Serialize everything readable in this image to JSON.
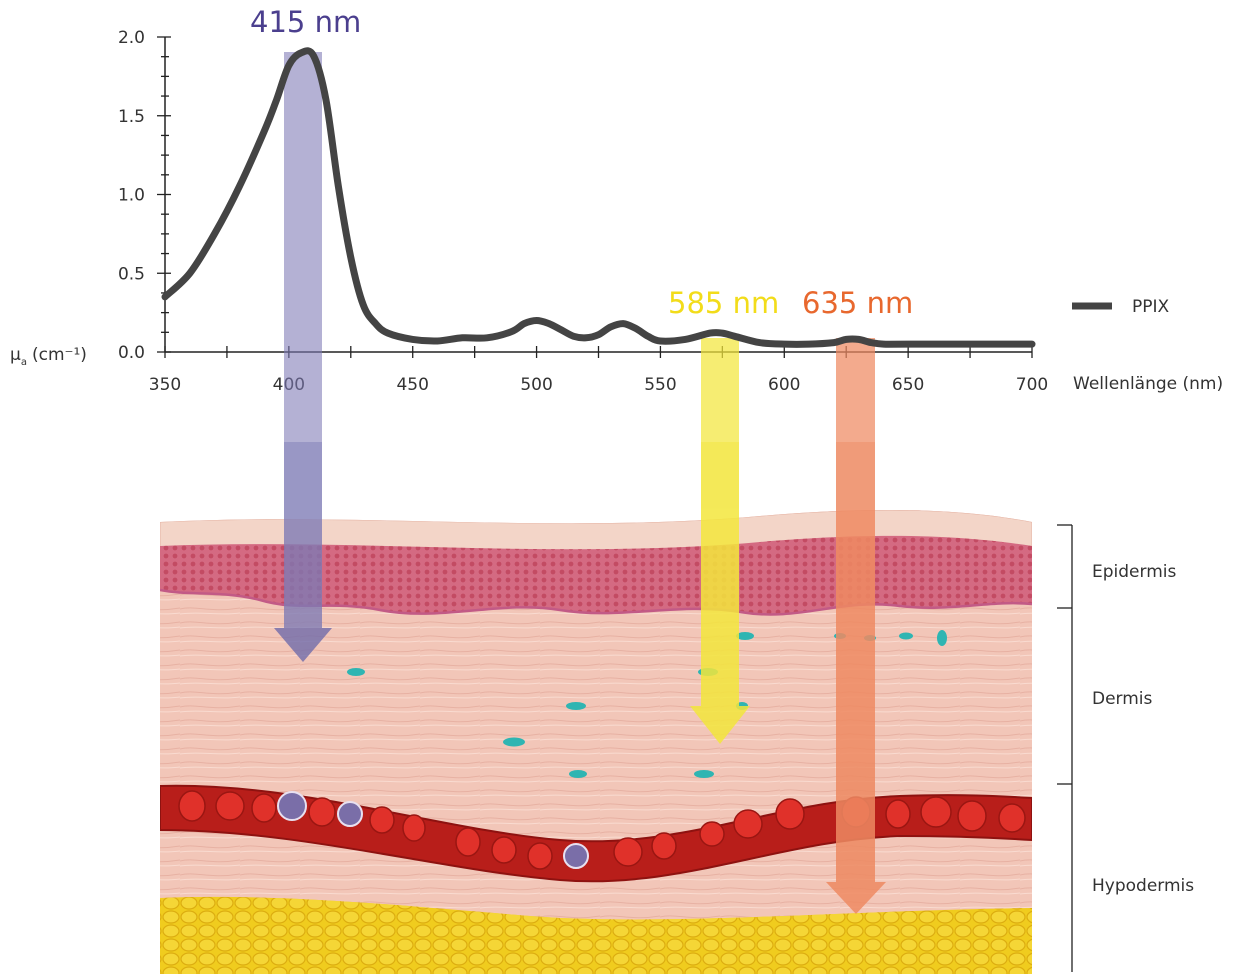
{
  "chart_data": {
    "type": "line",
    "title": "",
    "xlabel": "Wellenlänge (nm)",
    "ylabel": "μ",
    "ylabel_sub": "a",
    "ylabel_unit": "(cm⁻¹)",
    "xlim": [
      350,
      700
    ],
    "ylim": [
      0,
      2.0
    ],
    "x_ticks": [
      "350",
      "400",
      "450",
      "500",
      "550",
      "600",
      "650",
      "700"
    ],
    "y_ticks": [
      "0.0",
      "0.5",
      "1.0",
      "1.5",
      "2.0"
    ],
    "grid": false,
    "legend_position": "right",
    "series": [
      {
        "name": "PPIX",
        "color": "#444444",
        "x": [
          350,
          360,
          370,
          380,
          390,
          395,
          400,
          405,
          410,
          415,
          420,
          425,
          430,
          435,
          440,
          450,
          460,
          470,
          480,
          490,
          495,
          500,
          505,
          510,
          515,
          520,
          525,
          530,
          535,
          540,
          545,
          550,
          560,
          570,
          575,
          580,
          590,
          600,
          610,
          620,
          625,
          630,
          635,
          640,
          650,
          700
        ],
        "y": [
          0.35,
          0.5,
          0.75,
          1.05,
          1.4,
          1.6,
          1.82,
          1.9,
          1.88,
          1.6,
          1.05,
          0.6,
          0.3,
          0.18,
          0.12,
          0.08,
          0.07,
          0.09,
          0.09,
          0.13,
          0.18,
          0.2,
          0.18,
          0.14,
          0.1,
          0.09,
          0.11,
          0.16,
          0.18,
          0.15,
          0.1,
          0.07,
          0.08,
          0.12,
          0.12,
          0.1,
          0.06,
          0.05,
          0.05,
          0.06,
          0.08,
          0.08,
          0.06,
          0.05,
          0.05,
          0.05
        ]
      }
    ],
    "annotations": [
      {
        "label": "415 nm",
        "x": 415,
        "color": "#4b3f8e"
      },
      {
        "label": "585 nm",
        "x": 585,
        "color": "#f2dc1a"
      },
      {
        "label": "635 nm",
        "x": 635,
        "color": "#e8682e"
      }
    ]
  },
  "skin_layers": [
    {
      "label": "Epidermis"
    },
    {
      "label": "Dermis"
    },
    {
      "label": "Hypodermis"
    }
  ],
  "colors": {
    "arrow_415": "#7d7ab5",
    "arrow_585": "#f3e63c",
    "arrow_635": "#ee8a62",
    "epidermis": "#c94a6b",
    "dermis": "#f2c9bd",
    "vessel": "#c0211d",
    "fat": "#f0cc1e",
    "cells": "#2fb5b2"
  }
}
